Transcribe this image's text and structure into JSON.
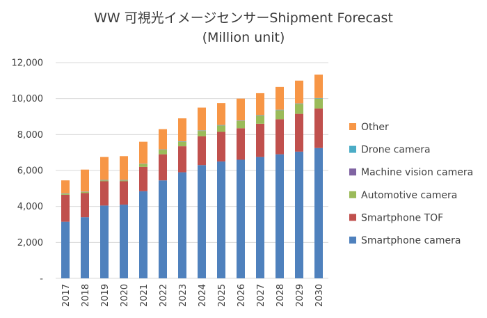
{
  "chart_data": {
    "type": "bar",
    "stacked": true,
    "title": "WW 可視光イメージセンサーShipment Forecast",
    "subtitle": "(Million unit)",
    "xlabel": "",
    "ylabel": "",
    "ylim": [
      0,
      12000
    ],
    "yticks": [
      "-",
      "2,000",
      "4,000",
      "6,000",
      "8,000",
      "10,000",
      "12,000"
    ],
    "ytick_values": [
      0,
      2000,
      4000,
      6000,
      8000,
      10000,
      12000
    ],
    "grid": true,
    "legend_position": "right",
    "categories": [
      "2017",
      "2018",
      "2019",
      "2020",
      "2021",
      "2022",
      "2023",
      "2024",
      "2025",
      "2026",
      "2027",
      "2028",
      "2029",
      "2030"
    ],
    "series": [
      {
        "name": "Smartphone camera",
        "color": "#4f81bd",
        "values": [
          3150,
          3400,
          4050,
          4100,
          4850,
          5450,
          5900,
          6300,
          6500,
          6600,
          6750,
          6900,
          7050,
          7250
        ]
      },
      {
        "name": "Smartphone TOF",
        "color": "#c0504d",
        "values": [
          1500,
          1350,
          1350,
          1300,
          1350,
          1450,
          1450,
          1600,
          1650,
          1750,
          1850,
          1950,
          2100,
          2200
        ]
      },
      {
        "name": "Automotive camera",
        "color": "#9bbb59",
        "values": [
          50,
          50,
          50,
          50,
          150,
          250,
          250,
          300,
          350,
          400,
          450,
          500,
          550,
          550
        ]
      },
      {
        "name": "Machine vision camera",
        "color": "#8064a2",
        "values": [
          10,
          10,
          10,
          10,
          10,
          10,
          10,
          10,
          10,
          10,
          10,
          10,
          10,
          10
        ]
      },
      {
        "name": "Drone camera",
        "color": "#4bacc6",
        "values": [
          15,
          15,
          15,
          15,
          15,
          15,
          15,
          20,
          20,
          20,
          20,
          20,
          20,
          20
        ]
      },
      {
        "name": "Other",
        "color": "#f79646",
        "values": [
          725,
          1225,
          1275,
          1325,
          1225,
          1125,
          1275,
          1270,
          1220,
          1220,
          1220,
          1270,
          1270,
          1300
        ]
      }
    ],
    "legend_order": [
      "Other",
      "Drone camera",
      "Machine vision camera",
      "Automotive camera",
      "Smartphone TOF",
      "Smartphone camera"
    ]
  }
}
